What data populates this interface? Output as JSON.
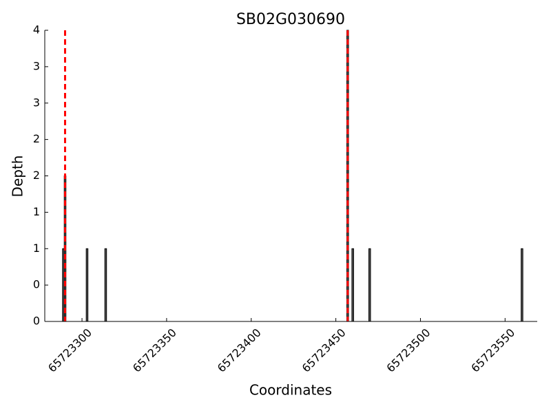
{
  "chart_data": {
    "type": "bar",
    "title": "SB02G030690",
    "x_label": "Coordinates",
    "y_label": "Depth",
    "x": [
      65723289,
      65723290,
      65723303,
      65723314,
      65723457,
      65723460,
      65723470,
      65723560
    ],
    "values": [
      1,
      2,
      1,
      1,
      4,
      1,
      1,
      1
    ],
    "color": "#555555",
    "edge_color": "#000000",
    "vlines": [
      {
        "x": 65723290,
        "color": "#ff0000"
      },
      {
        "x": 65723457,
        "color": "#ff0000"
      }
    ],
    "xlim": [
      65723278,
      65723569
    ],
    "ylim": [
      0,
      4
    ],
    "xticks": [
      65723300,
      65723350,
      65723400,
      65723450,
      65723500,
      65723550
    ],
    "yticks": [
      0,
      {
        "value": 0.5,
        "label": "0"
      },
      1,
      {
        "value": 1.5,
        "label": "1"
      },
      2,
      {
        "value": 2.5,
        "label": "2"
      },
      3,
      {
        "value": 3.5,
        "label": "3"
      },
      4
    ]
  }
}
